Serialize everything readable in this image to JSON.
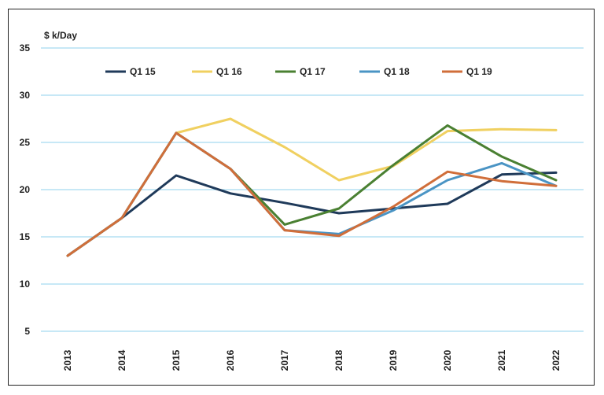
{
  "chart_data": {
    "type": "line",
    "ylabel": "$ k/Day",
    "ylim": [
      5,
      35
    ],
    "yticks": [
      5,
      10,
      15,
      20,
      25,
      30,
      35
    ],
    "grid": true,
    "legend_position": "top",
    "x": [
      "2013",
      "2014",
      "2015",
      "2016",
      "2017",
      "2018",
      "2019",
      "2020",
      "2021",
      "2022"
    ],
    "series": [
      {
        "name": "Q1 15",
        "color": "#1f3a5a",
        "values": [
          13.0,
          17.0,
          21.5,
          19.6,
          18.6,
          17.5,
          18.0,
          18.5,
          21.6,
          21.8
        ]
      },
      {
        "name": "Q1 16",
        "color": "#f0d060",
        "values": [
          13.0,
          17.0,
          26.0,
          27.5,
          24.5,
          21.0,
          22.5,
          26.2,
          26.4,
          26.3
        ]
      },
      {
        "name": "Q1 17",
        "color": "#4a8032",
        "values": [
          13.0,
          17.0,
          26.0,
          22.2,
          16.3,
          18.0,
          22.6,
          26.8,
          23.5,
          21.0
        ]
      },
      {
        "name": "Q1 18",
        "color": "#4a94c4",
        "values": [
          13.0,
          17.0,
          26.0,
          22.2,
          15.7,
          15.3,
          17.8,
          21.0,
          22.8,
          20.4
        ]
      },
      {
        "name": "Q1 19",
        "color": "#d06e3a",
        "values": [
          13.0,
          17.0,
          26.0,
          22.2,
          15.7,
          15.1,
          18.2,
          21.9,
          20.9,
          20.4
        ]
      }
    ]
  }
}
